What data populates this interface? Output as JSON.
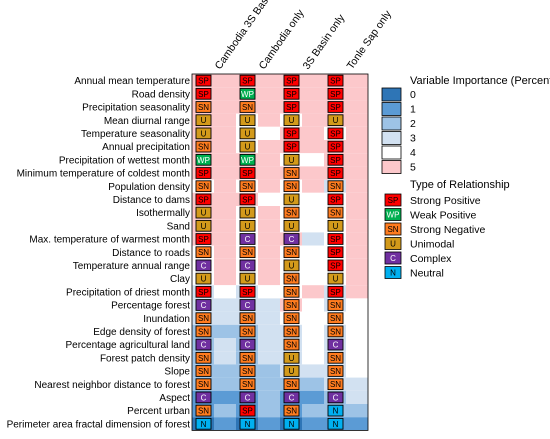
{
  "chart_data": {
    "type": "heatmap",
    "title": "",
    "columns": [
      "Cambodia 3S Basin",
      "Cambodia only",
      "3S Basin only",
      "Tonle Sap only"
    ],
    "rows": [
      "Annual mean temperature",
      "Road density",
      "Precipitation seasonality",
      "Mean diurnal range",
      "Temperature seasonality",
      "Annual precipitation",
      "Precipitation of wettest month",
      "Minimum temperature of coldest month",
      "Population density",
      "Distance to dams",
      "Isothermally",
      "Sand",
      "Max. temperature of warmest month",
      "Distance to roads",
      "Temperature annual range",
      "Clay",
      "Precipitation of driest month",
      "Percentage forest",
      "Inundation",
      "Edge density of forest",
      "Percentage agricultural land",
      "Forest patch density",
      "Slope",
      "Nearest neighbor distance to forest",
      "Aspect",
      "Percent urban",
      "Perimeter area fractal dimension of forest"
    ],
    "importance": [
      [
        5,
        5,
        5,
        5,
        5,
        5,
        5,
        5
      ],
      [
        5,
        5,
        5,
        5,
        5,
        5,
        5,
        5
      ],
      [
        5,
        5,
        5,
        5,
        5,
        5,
        5,
        5
      ],
      [
        5,
        5,
        4,
        5,
        4,
        5,
        5,
        5
      ],
      [
        5,
        5,
        4,
        4,
        5,
        5,
        4,
        5
      ],
      [
        5,
        5,
        4,
        5,
        5,
        5,
        5,
        5
      ],
      [
        5,
        5,
        5,
        5,
        4,
        4,
        5,
        5
      ],
      [
        5,
        5,
        5,
        5,
        5,
        5,
        5,
        5
      ],
      [
        4,
        5,
        4,
        5,
        4,
        5,
        3,
        5
      ],
      [
        5,
        5,
        5,
        4,
        4,
        4,
        4,
        5
      ],
      [
        5,
        5,
        4,
        5,
        4,
        4,
        4,
        5
      ],
      [
        5,
        5,
        4,
        5,
        4,
        4,
        4,
        5
      ],
      [
        5,
        5,
        4,
        5,
        5,
        3,
        4,
        5
      ],
      [
        4,
        5,
        4,
        5,
        4,
        4,
        4,
        5
      ],
      [
        4,
        5,
        4,
        5,
        4,
        4,
        4,
        5
      ],
      [
        4,
        5,
        4,
        5,
        4,
        4,
        4,
        5
      ],
      [
        3,
        4,
        3,
        4,
        4,
        5,
        3,
        5
      ],
      [
        3,
        3,
        3,
        3,
        5,
        4,
        3,
        4
      ],
      [
        3,
        3,
        3,
        3,
        4,
        4,
        4,
        4
      ],
      [
        2,
        2,
        2,
        3,
        3,
        4,
        3,
        4
      ],
      [
        2,
        3,
        2,
        3,
        3,
        4,
        3,
        4
      ],
      [
        2,
        3,
        2,
        3,
        3,
        4,
        3,
        4
      ],
      [
        2,
        2,
        2,
        2,
        3,
        3,
        3,
        4
      ],
      [
        2,
        2,
        2,
        2,
        2,
        2,
        3,
        3
      ],
      [
        1,
        1,
        1,
        2,
        1,
        1,
        2,
        3
      ],
      [
        1,
        2,
        1,
        2,
        1,
        2,
        2,
        2
      ],
      [
        0,
        1,
        0,
        1,
        0,
        1,
        1,
        1
      ]
    ],
    "relationships": [
      [
        "SP",
        "SP",
        "SP",
        "SP"
      ],
      [
        "SP",
        "WP",
        "SP",
        "SP"
      ],
      [
        "SN",
        "SN",
        "SP",
        "SP"
      ],
      [
        "U",
        "U",
        "U",
        "U"
      ],
      [
        "U",
        "U",
        "SP",
        "SP"
      ],
      [
        "SN",
        "U",
        "SP",
        "SP"
      ],
      [
        "WP",
        "WP",
        "U",
        "SP"
      ],
      [
        "SP",
        "SP",
        "SN",
        "SP"
      ],
      [
        "SN",
        "SN",
        "SN",
        "SN"
      ],
      [
        "SP",
        "SP",
        "U",
        "SP"
      ],
      [
        "U",
        "U",
        "SN",
        "SN"
      ],
      [
        "U",
        "U",
        "U",
        "U"
      ],
      [
        "SP",
        "C",
        "C",
        "SP"
      ],
      [
        "SN",
        "SN",
        "SN",
        "SP"
      ],
      [
        "C",
        "C",
        "U",
        "SP"
      ],
      [
        "U",
        "U",
        "SN",
        "U"
      ],
      [
        "SP",
        "SP",
        "SN",
        "SP"
      ],
      [
        "C",
        "C",
        "SN",
        "SN"
      ],
      [
        "SN",
        "SN",
        "SN",
        "SN"
      ],
      [
        "SN",
        "SN",
        "SN",
        "SN"
      ],
      [
        "C",
        "C",
        "SN",
        "C"
      ],
      [
        "SN",
        "SN",
        "U",
        "SN"
      ],
      [
        "SN",
        "SN",
        "U",
        "SN"
      ],
      [
        "SN",
        "SN",
        "SN",
        "SN"
      ],
      [
        "C",
        "C",
        "C",
        "C"
      ],
      [
        "SN",
        "SP",
        "SN",
        "N"
      ],
      [
        "N",
        "N",
        "N",
        "N"
      ]
    ],
    "importance_legend": {
      "title": "Variable Importance (Percent)",
      "levels": [
        {
          "label": "0",
          "color": "#2e75b6"
        },
        {
          "label": "1",
          "color": "#5b9bd5"
        },
        {
          "label": "2",
          "color": "#9dc3e6"
        },
        {
          "label": "3",
          "color": "#d2e1f1"
        },
        {
          "label": "4",
          "color": "#ffffff"
        },
        {
          "label": "5",
          "color": "#fcc8cb"
        }
      ]
    },
    "relationship_legend": {
      "title": "Type of Relationship",
      "types": [
        {
          "code": "SP",
          "label": "Strong Positive",
          "color": "#ff0000",
          "text_color": "#000000"
        },
        {
          "code": "WP",
          "label": "Weak Positive",
          "color": "#00b050",
          "text_color": "#ffffff"
        },
        {
          "code": "SN",
          "label": "Strong Negative",
          "color": "#ff7c1f",
          "text_color": "#000000"
        },
        {
          "code": "U",
          "label": "Unimodal",
          "color": "#d39a1b",
          "text_color": "#000000"
        },
        {
          "code": "C",
          "label": "Complex",
          "color": "#7030a0",
          "text_color": "#ffffff"
        },
        {
          "code": "N",
          "label": "Neutral",
          "color": "#00b0f0",
          "text_color": "#000000"
        }
      ]
    },
    "importance_colors": {
      "0": "#2e75b6",
      "1": "#5b9bd5",
      "2": "#9dc3e6",
      "3": "#d2e1f1",
      "4": "#ffffff",
      "5": "#fcc8cb",
      "strong5": "#f48a92"
    }
  }
}
